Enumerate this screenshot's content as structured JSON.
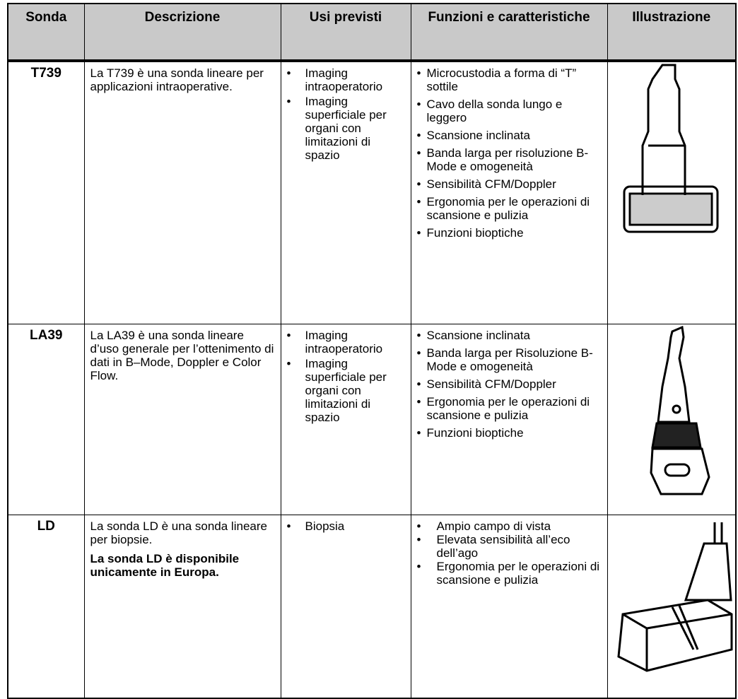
{
  "table": {
    "headers": [
      "Sonda",
      "Descrizione",
      "Usi previsti",
      "Funzioni e caratteristiche",
      "Illustrazione"
    ],
    "rows": [
      {
        "probe": "T739",
        "description": [
          "La T739 è una sonda lineare per applicazioni intraoperative."
        ],
        "uses": [
          "Imaging intraoperatorio",
          "Imaging superficiale per organi con limitazioni di spazio"
        ],
        "features": [
          "Microcustodia a forma di “T” sottile",
          "Cavo della sonda lungo e leggero",
          "Scansione inclinata",
          "Banda larga per risoluzione B-Mode e omogeneità",
          "Sensibilità CFM/Doppler",
          "Ergonomia per le operazioni di scansione e pulizia",
          "Funzioni bioptiche"
        ]
      },
      {
        "probe": "LA39",
        "description": [
          "La LA39 è una sonda lineare d’uso generale per l’ottenimento di dati in B–Mode, Doppler e Color Flow."
        ],
        "uses": [
          "Imaging intraoperatorio",
          "Imaging superficiale per organi con limitazioni di spazio"
        ],
        "features": [
          "Scansione inclinata",
          "Banda larga per Risoluzione B-Mode e omogeneità",
          "Sensibilità CFM/Doppler",
          "Ergonomia per le operazioni di scansione e pulizia",
          "Funzioni bioptiche"
        ]
      },
      {
        "probe": "LD",
        "description": [
          "La sonda LD è una sonda lineare per biopsie.",
          "La sonda LD è disponibile unicamente in Europa."
        ],
        "uses": [
          "Biopsia"
        ],
        "features": [
          "Ampio campo di vista",
          "Elevata sensibilità all’eco dell’ago",
          "Ergonomia per le operazioni di scansione e pulizia"
        ]
      }
    ]
  }
}
